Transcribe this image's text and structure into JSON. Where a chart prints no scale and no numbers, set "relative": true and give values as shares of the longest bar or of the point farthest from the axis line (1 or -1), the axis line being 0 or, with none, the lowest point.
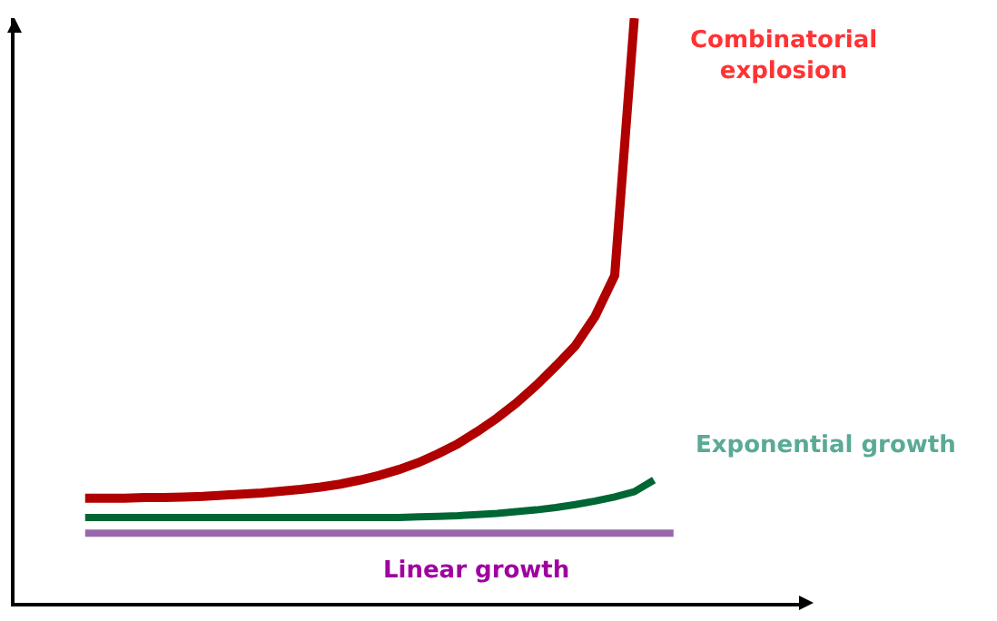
{
  "chart_data": {
    "type": "line",
    "relative": true,
    "grid": false,
    "legend": false,
    "marker": "none",
    "line_style": "solid",
    "categories": [
      null,
      null,
      null,
      null,
      null,
      null,
      null,
      null,
      null,
      null,
      null,
      null,
      null,
      null,
      null,
      null,
      null,
      null,
      null,
      null,
      null,
      null,
      null,
      null,
      null,
      null,
      null,
      null,
      null,
      null,
      null
    ],
    "series": [
      {
        "name": "Combinatorial explosion",
        "color": "#b00000",
        "values": [
          0.179,
          0.179,
          0.179,
          0.18,
          0.18,
          0.181,
          0.182,
          0.184,
          0.186,
          0.188,
          0.191,
          0.194,
          0.198,
          0.203,
          0.21,
          0.218,
          0.228,
          0.24,
          0.255,
          0.272,
          0.293,
          0.316,
          0.342,
          0.372,
          0.405,
          0.44,
          0.49,
          0.56,
          1.0,
          null,
          null
        ]
      },
      {
        "name": "Exponential growth",
        "color": "#006633",
        "values": [
          0.146,
          0.146,
          0.146,
          0.146,
          0.146,
          0.146,
          0.146,
          0.146,
          0.146,
          0.146,
          0.146,
          0.146,
          0.146,
          0.146,
          0.146,
          0.146,
          0.146,
          0.147,
          0.148,
          0.149,
          0.151,
          0.153,
          0.156,
          0.159,
          0.163,
          0.168,
          0.174,
          0.181,
          0.19,
          0.21,
          null
        ]
      },
      {
        "name": "Linear growth",
        "color": "#9966aa",
        "values": [
          0.119,
          0.119,
          0.119,
          0.119,
          0.119,
          0.119,
          0.119,
          0.119,
          0.119,
          0.119,
          0.119,
          0.119,
          0.119,
          0.119,
          0.119,
          0.119,
          0.119,
          0.119,
          0.119,
          0.119,
          0.119,
          0.119,
          0.119,
          0.119,
          0.119,
          0.119,
          0.119,
          0.119,
          0.119,
          0.119,
          0.119
        ]
      }
    ]
  }
}
